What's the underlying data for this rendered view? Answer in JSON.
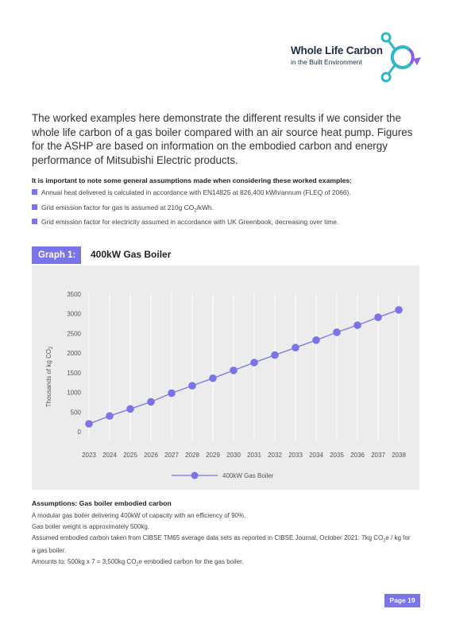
{
  "logo": {
    "title": "Whole Life Carbon",
    "subtitle": "in the Built Environment",
    "colors": {
      "teal": "#2bb8c9",
      "purple": "#8a5cf0"
    }
  },
  "intro": "The worked examples here demonstrate the different results if we consider the whole life carbon of a gas boiler compared with an air source heat pump. Figures for the ASHP are based on information on the embodied carbon and energy performance of Mitsubishi Electric products.",
  "assumptions_note": {
    "heading": "It is important to note some general assumptions made when considering these worked examples:",
    "items": [
      {
        "pre": "Annual heat delivered is calculated in accordance with EN14825 at 826,400 kWh/annum (FLEQ of 2066).",
        "sub": "",
        "post": ""
      },
      {
        "pre": "Grid emission factor for gas is assumed at 210g CO",
        "sub": "2",
        "post": "/kWh."
      },
      {
        "pre": "Grid emission factor for electricity assumed in accordance with UK Greenbook, decreasing over time.",
        "sub": "",
        "post": ""
      }
    ]
  },
  "graph": {
    "badge": "Graph 1:",
    "title": "400kW Gas Boiler",
    "accent": "#7b73e8"
  },
  "chart_data": {
    "type": "line",
    "title": "400kW Gas Boiler",
    "ylabel_main": "Thousands of kg CO",
    "ylabel_sub": "2",
    "xlabel": "",
    "ylim": [
      0,
      3500
    ],
    "yticks": [
      0,
      500,
      1000,
      1500,
      2000,
      2500,
      3000,
      3500
    ],
    "x": [
      2023,
      2024,
      2025,
      2026,
      2027,
      2028,
      2029,
      2030,
      2031,
      2032,
      2033,
      2034,
      2035,
      2036,
      2037,
      2038
    ],
    "series": [
      {
        "name": "400kW Gas Boiler",
        "color": "#7b73e8",
        "values": [
          200,
          400,
          580,
          760,
          980,
          1170,
          1360,
          1560,
          1760,
          1950,
          2140,
          2330,
          2530,
          2710,
          2910,
          3100
        ]
      }
    ],
    "grid": "vertical",
    "legend": "bottom-center"
  },
  "assumptions": {
    "heading": "Assumptions: Gas boiler embodied carbon",
    "lines": [
      {
        "parts": [
          "A modular gas boiler delivering 400kW of capacity with an efficiency of 90%."
        ]
      },
      {
        "parts": [
          "Gas boiler weight is approximately 500kg."
        ]
      },
      {
        "parts": [
          "Assumed embodied carbon taken from CIBSE TM65 average data sets as reported in CIBSE Journal, October 2021: 7kg CO",
          "2",
          "e / kg for a gas boiler."
        ]
      },
      {
        "parts": [
          "Amounts to: 500kg x 7 = 3,500kg CO",
          "2",
          "e embodied carbon for the gas boiler."
        ]
      }
    ]
  },
  "page": {
    "label": "Page 19"
  }
}
